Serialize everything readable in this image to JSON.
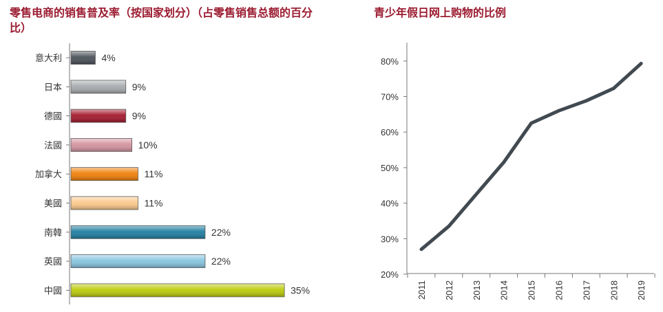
{
  "chart_data": [
    {
      "type": "bar",
      "orientation": "horizontal",
      "title": "零售电商的销售普及率（按国家划分）（占零售销售总额的百分比）",
      "categories": [
        "意大利",
        "日本",
        "德國",
        "法國",
        "加拿大",
        "美國",
        "南韓",
        "英國",
        "中國"
      ],
      "values": [
        4,
        9,
        9,
        10,
        11,
        11,
        22,
        22,
        35
      ],
      "value_labels": [
        "4%",
        "9%",
        "9%",
        "10%",
        "11%",
        "11%",
        "22%",
        "22%",
        "35%"
      ],
      "colors": [
        "#4a5159",
        "#a7abae",
        "#a3182c",
        "#d4939f",
        "#f07f09",
        "#fcc98c",
        "#1f7ea1",
        "#87c5e0",
        "#bccb0a"
      ],
      "xlim": [
        0,
        35
      ],
      "grid": false,
      "legend": "none"
    },
    {
      "type": "line",
      "title": "青少年假日网上购物的比例",
      "x": [
        "2011",
        "2012",
        "2013",
        "2014",
        "2015",
        "2016",
        "2017",
        "2018",
        "2019"
      ],
      "series": [
        {
          "values": [
            27,
            33.5,
            42.5,
            51.5,
            62.5,
            66,
            68.8,
            72.3,
            79.3
          ]
        }
      ],
      "yticks": [
        "20%",
        "30%",
        "40%",
        "50%",
        "60%",
        "70%",
        "80%"
      ],
      "ylim": [
        20,
        85
      ],
      "line_color": "#424a51",
      "grid": false,
      "legend": "none"
    }
  ]
}
